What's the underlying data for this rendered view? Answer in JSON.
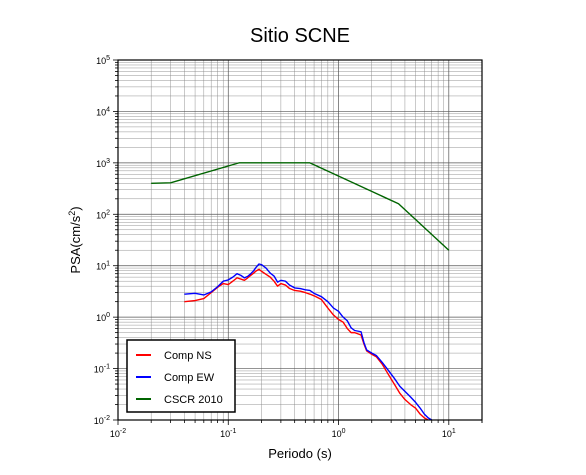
{
  "chart_data": {
    "type": "line",
    "title": "Sitio SCNE",
    "xlabel": "Periodo (s)",
    "ylabel": "PSA(cm/s2)",
    "x_scale": "log",
    "y_scale": "log",
    "xlim": [
      0.01,
      20
    ],
    "ylim": [
      0.01,
      100000
    ],
    "grid": true,
    "legend_position": "bottom-left",
    "x_ticks": [
      {
        "base": "10",
        "exp": "-2",
        "value": 0.01
      },
      {
        "base": "10",
        "exp": "-1",
        "value": 0.1
      },
      {
        "base": "10",
        "exp": "0",
        "value": 1
      },
      {
        "base": "10",
        "exp": "1",
        "value": 10
      }
    ],
    "y_ticks": [
      {
        "base": "10",
        "exp": "-2",
        "value": 0.01
      },
      {
        "base": "10",
        "exp": "-1",
        "value": 0.1
      },
      {
        "base": "10",
        "exp": "0",
        "value": 1
      },
      {
        "base": "10",
        "exp": "1",
        "value": 10
      },
      {
        "base": "10",
        "exp": "2",
        "value": 100
      },
      {
        "base": "10",
        "exp": "3",
        "value": 1000
      },
      {
        "base": "10",
        "exp": "4",
        "value": 10000
      },
      {
        "base": "10",
        "exp": "5",
        "value": 100000
      }
    ],
    "series": [
      {
        "name": "Comp NS",
        "color": "#ff0000",
        "points": [
          [
            0.04,
            2.0
          ],
          [
            0.05,
            2.1
          ],
          [
            0.06,
            2.3
          ],
          [
            0.07,
            3.0
          ],
          [
            0.08,
            3.8
          ],
          [
            0.09,
            4.5
          ],
          [
            0.1,
            4.3
          ],
          [
            0.11,
            5.0
          ],
          [
            0.12,
            5.8
          ],
          [
            0.13,
            5.5
          ],
          [
            0.14,
            5.2
          ],
          [
            0.15,
            5.8
          ],
          [
            0.16,
            6.5
          ],
          [
            0.17,
            7.2
          ],
          [
            0.18,
            8.0
          ],
          [
            0.19,
            8.5
          ],
          [
            0.2,
            7.8
          ],
          [
            0.22,
            6.8
          ],
          [
            0.24,
            6.0
          ],
          [
            0.26,
            5.0
          ],
          [
            0.28,
            4.0
          ],
          [
            0.3,
            4.5
          ],
          [
            0.33,
            4.2
          ],
          [
            0.36,
            3.6
          ],
          [
            0.4,
            3.3
          ],
          [
            0.45,
            3.2
          ],
          [
            0.5,
            3.0
          ],
          [
            0.55,
            2.8
          ],
          [
            0.6,
            2.6
          ],
          [
            0.7,
            2.2
          ],
          [
            0.8,
            1.5
          ],
          [
            0.9,
            1.1
          ],
          [
            1.0,
            0.9
          ],
          [
            1.1,
            0.8
          ],
          [
            1.2,
            0.6
          ],
          [
            1.3,
            0.5
          ],
          [
            1.4,
            0.5
          ],
          [
            1.6,
            0.45
          ],
          [
            1.7,
            0.3
          ],
          [
            1.8,
            0.22
          ],
          [
            2.0,
            0.19
          ],
          [
            2.2,
            0.17
          ],
          [
            2.5,
            0.12
          ],
          [
            2.8,
            0.08
          ],
          [
            3.2,
            0.05
          ],
          [
            3.6,
            0.033
          ],
          [
            4.0,
            0.025
          ],
          [
            4.5,
            0.02
          ],
          [
            5.0,
            0.017
          ],
          [
            5.5,
            0.013
          ],
          [
            6.0,
            0.011
          ],
          [
            6.5,
            0.01
          ]
        ]
      },
      {
        "name": "Comp EW",
        "color": "#0000ff",
        "points": [
          [
            0.04,
            2.8
          ],
          [
            0.05,
            2.9
          ],
          [
            0.06,
            2.7
          ],
          [
            0.07,
            3.1
          ],
          [
            0.08,
            3.9
          ],
          [
            0.09,
            5.0
          ],
          [
            0.1,
            5.3
          ],
          [
            0.11,
            6.0
          ],
          [
            0.12,
            7.0
          ],
          [
            0.13,
            6.5
          ],
          [
            0.14,
            5.8
          ],
          [
            0.15,
            6.2
          ],
          [
            0.16,
            7.0
          ],
          [
            0.17,
            8.0
          ],
          [
            0.18,
            9.5
          ],
          [
            0.19,
            10.8
          ],
          [
            0.2,
            10.5
          ],
          [
            0.22,
            9.0
          ],
          [
            0.24,
            7.2
          ],
          [
            0.26,
            6.3
          ],
          [
            0.28,
            4.8
          ],
          [
            0.3,
            5.2
          ],
          [
            0.33,
            5.0
          ],
          [
            0.36,
            4.2
          ],
          [
            0.4,
            3.7
          ],
          [
            0.45,
            3.6
          ],
          [
            0.5,
            3.4
          ],
          [
            0.55,
            3.3
          ],
          [
            0.6,
            2.9
          ],
          [
            0.7,
            2.5
          ],
          [
            0.8,
            2.0
          ],
          [
            0.9,
            1.5
          ],
          [
            1.0,
            1.3
          ],
          [
            1.1,
            1.0
          ],
          [
            1.2,
            0.85
          ],
          [
            1.3,
            0.62
          ],
          [
            1.4,
            0.55
          ],
          [
            1.6,
            0.52
          ],
          [
            1.7,
            0.32
          ],
          [
            1.8,
            0.23
          ],
          [
            2.0,
            0.2
          ],
          [
            2.2,
            0.18
          ],
          [
            2.5,
            0.13
          ],
          [
            2.8,
            0.095
          ],
          [
            3.2,
            0.065
          ],
          [
            3.6,
            0.045
          ],
          [
            4.0,
            0.036
          ],
          [
            4.5,
            0.028
          ],
          [
            5.0,
            0.022
          ],
          [
            5.5,
            0.017
          ],
          [
            6.0,
            0.013
          ],
          [
            6.5,
            0.011
          ],
          [
            7.0,
            0.01
          ]
        ]
      },
      {
        "name": "CSCR 2010",
        "color": "#006400",
        "points": [
          [
            0.02,
            400
          ],
          [
            0.03,
            410
          ],
          [
            0.125,
            1000
          ],
          [
            0.55,
            1000
          ],
          [
            3.5,
            160
          ],
          [
            10,
            20
          ]
        ]
      }
    ]
  }
}
